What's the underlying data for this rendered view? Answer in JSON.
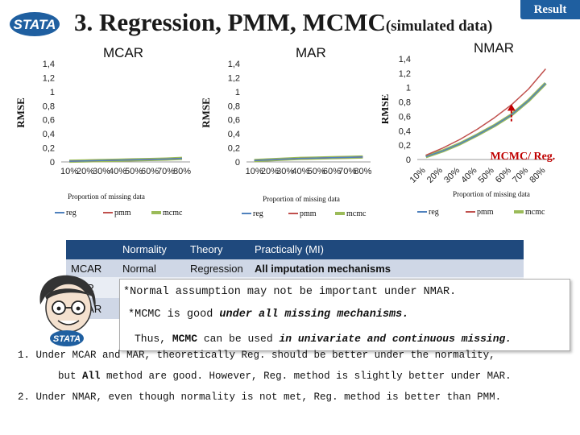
{
  "header": {
    "title": "3. Regression, PMM, MCMC",
    "subtitle": "(simulated data)",
    "badge": "Result",
    "logo_text": "STATA"
  },
  "colors": {
    "reg": "#4f81bd",
    "pmm": "#c0504d",
    "mcmc": "#9bbb59",
    "table_header": "#1f497d",
    "table_row_a": "#cfd7e6",
    "table_row_b": "#e9edf4",
    "badge": "#1f5fa0",
    "annotation": "#c00000"
  },
  "chart_data": [
    {
      "type": "line",
      "title": "MCAR",
      "ylabel": "RMSE",
      "xlabel": "Proportion of missing data",
      "categories": [
        "10%",
        "20%",
        "30%",
        "40%",
        "50%",
        "60%",
        "70%",
        "80%"
      ],
      "yticks": [
        "0",
        "0,2",
        "0,4",
        "0,6",
        "0,8",
        "1",
        "1,2",
        "1,4"
      ],
      "ylim": [
        0,
        1.4
      ],
      "series": [
        {
          "name": "reg",
          "values": [
            0.01,
            0.015,
            0.02,
            0.025,
            0.03,
            0.035,
            0.04,
            0.05
          ]
        },
        {
          "name": "pmm",
          "values": [
            0.01,
            0.015,
            0.02,
            0.025,
            0.03,
            0.035,
            0.04,
            0.05
          ]
        },
        {
          "name": "mcmc",
          "values": [
            0.01,
            0.015,
            0.02,
            0.025,
            0.03,
            0.035,
            0.04,
            0.05
          ]
        }
      ],
      "legend": [
        "reg",
        "pmm",
        "mcmc"
      ]
    },
    {
      "type": "line",
      "title": "MAR",
      "ylabel": "RMSE",
      "xlabel": "Proportion of missing data",
      "categories": [
        "10%",
        "20%",
        "30%",
        "40%",
        "50%",
        "60%",
        "70%",
        "80%"
      ],
      "yticks": [
        "0",
        "0,2",
        "0,4",
        "0,6",
        "0,8",
        "1",
        "1,2",
        "1,4"
      ],
      "ylim": [
        0,
        1.4
      ],
      "series": [
        {
          "name": "reg",
          "values": [
            0.02,
            0.03,
            0.04,
            0.05,
            0.055,
            0.06,
            0.065,
            0.07
          ]
        },
        {
          "name": "pmm",
          "values": [
            0.02,
            0.03,
            0.04,
            0.05,
            0.055,
            0.06,
            0.065,
            0.07
          ]
        },
        {
          "name": "mcmc",
          "values": [
            0.02,
            0.03,
            0.04,
            0.05,
            0.055,
            0.06,
            0.065,
            0.07
          ]
        }
      ],
      "legend": [
        "reg",
        "pmm",
        "mcmc"
      ]
    },
    {
      "type": "line",
      "title": "NMAR",
      "ylabel": "RMSE",
      "xlabel": "Proportion of missing data",
      "categories": [
        "10%",
        "20%",
        "30%",
        "40%",
        "50%",
        "60%",
        "70%",
        "80%"
      ],
      "yticks": [
        "0",
        "0,2",
        "0,4",
        "0,6",
        "0,8",
        "1",
        "1,2",
        "1,4"
      ],
      "ylim": [
        0,
        1.4
      ],
      "series": [
        {
          "name": "reg",
          "values": [
            0.04,
            0.12,
            0.22,
            0.34,
            0.47,
            0.62,
            0.82,
            1.06
          ]
        },
        {
          "name": "pmm",
          "values": [
            0.06,
            0.16,
            0.28,
            0.42,
            0.58,
            0.76,
            0.98,
            1.26
          ]
        },
        {
          "name": "mcmc",
          "values": [
            0.04,
            0.12,
            0.22,
            0.34,
            0.47,
            0.62,
            0.82,
            1.06
          ]
        }
      ],
      "legend": [
        "reg",
        "pmm",
        "mcmc"
      ],
      "annotation": "MCMC/ Reg."
    }
  ],
  "table": {
    "headers": [
      "",
      "Normality",
      "Theory",
      "Practically (MI)"
    ],
    "rows": [
      [
        "MCAR",
        "Normal",
        "Regression",
        "All imputation mechanisms"
      ],
      [
        "MAR",
        "",
        "",
        ""
      ],
      [
        "NMAR",
        "",
        "",
        ""
      ]
    ]
  },
  "popup": {
    "line1": "*Normal assumption may not be important under NMAR.",
    "line2a": "*MCMC is good ",
    "line2b": "under all missing mechanisms.",
    "line3a": "Thus, ",
    "line3b": "MCMC",
    "line3c": " can be used ",
    "line3d": "in univariate and continuous missing."
  },
  "footer": {
    "line1": "1. Under MCAR and MAR, theoretically Reg. should be better under the normality,",
    "line2a": "but ",
    "line2b": "All",
    "line2c": " method are good. However, Reg. method is slightly better under MAR.",
    "line3": "2. Under NMAR, even though normality is not met, Reg. method is better than PMM."
  }
}
